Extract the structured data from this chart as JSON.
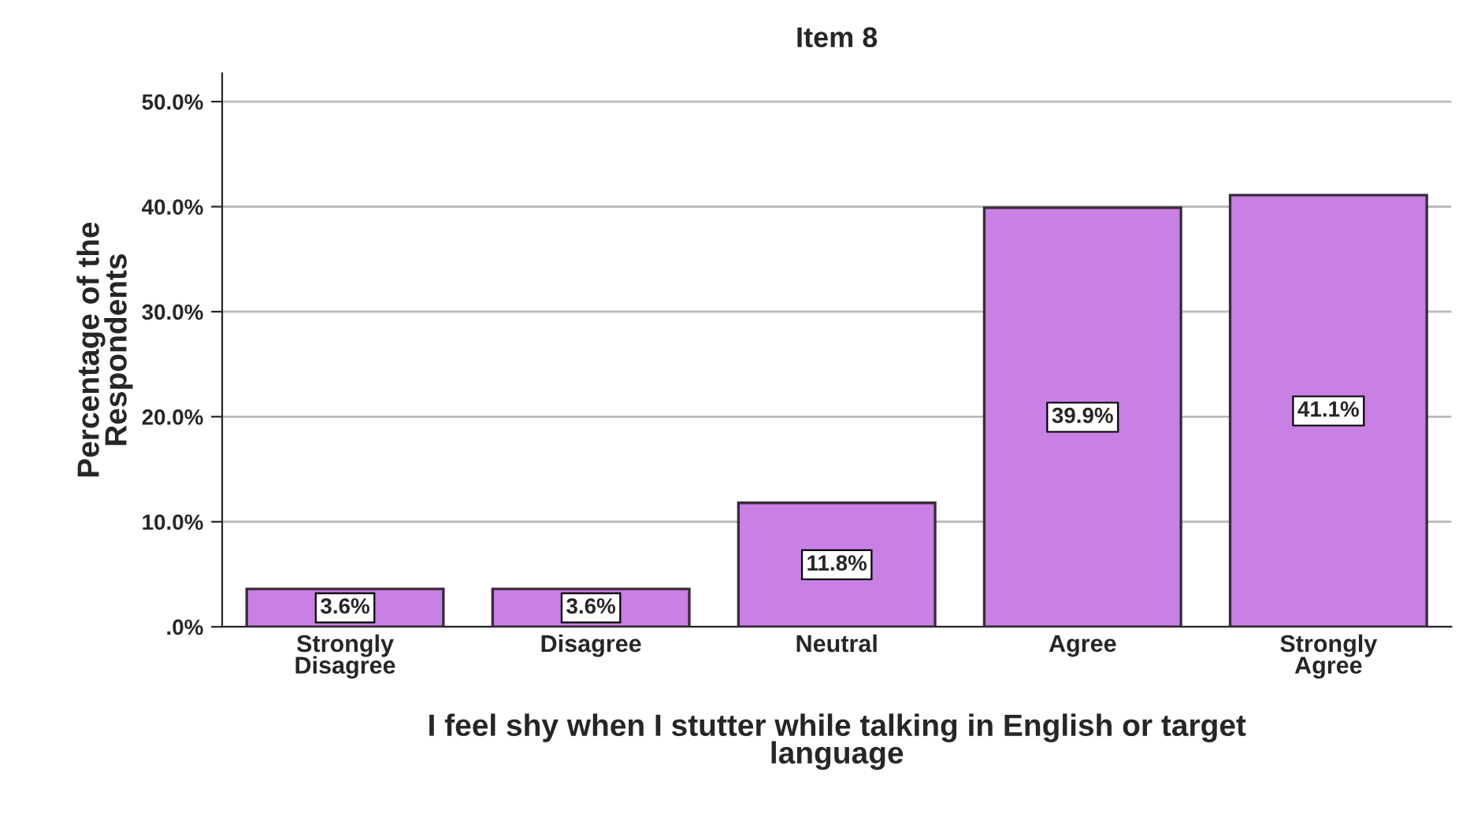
{
  "chart_data": {
    "type": "bar",
    "title": "Item 8",
    "xlabel": "I feel shy when I stutter while talking in English or target\nlanguage",
    "ylabel": "Percentage of the\nRespondents",
    "categories": [
      "Strongly\nDisagree",
      "Disagree",
      "Neutral",
      "Agree",
      "Strongly\nAgree"
    ],
    "values": [
      3.6,
      3.6,
      11.8,
      39.9,
      41.1
    ],
    "value_labels": [
      "3.6%",
      "3.6%",
      "11.8%",
      "39.9%",
      "41.1%"
    ],
    "color": "#c980e4",
    "ylim": [
      0,
      52.7
    ],
    "yticks": [
      {
        "value": 0,
        "label": ".0%"
      },
      {
        "value": 10,
        "label": "10.0%"
      },
      {
        "value": 20,
        "label": "20.0%"
      },
      {
        "value": 30,
        "label": "30.0%"
      },
      {
        "value": 40,
        "label": "40.0%"
      },
      {
        "value": 50,
        "label": "50.0%"
      }
    ],
    "grid": "y",
    "legend": false
  }
}
